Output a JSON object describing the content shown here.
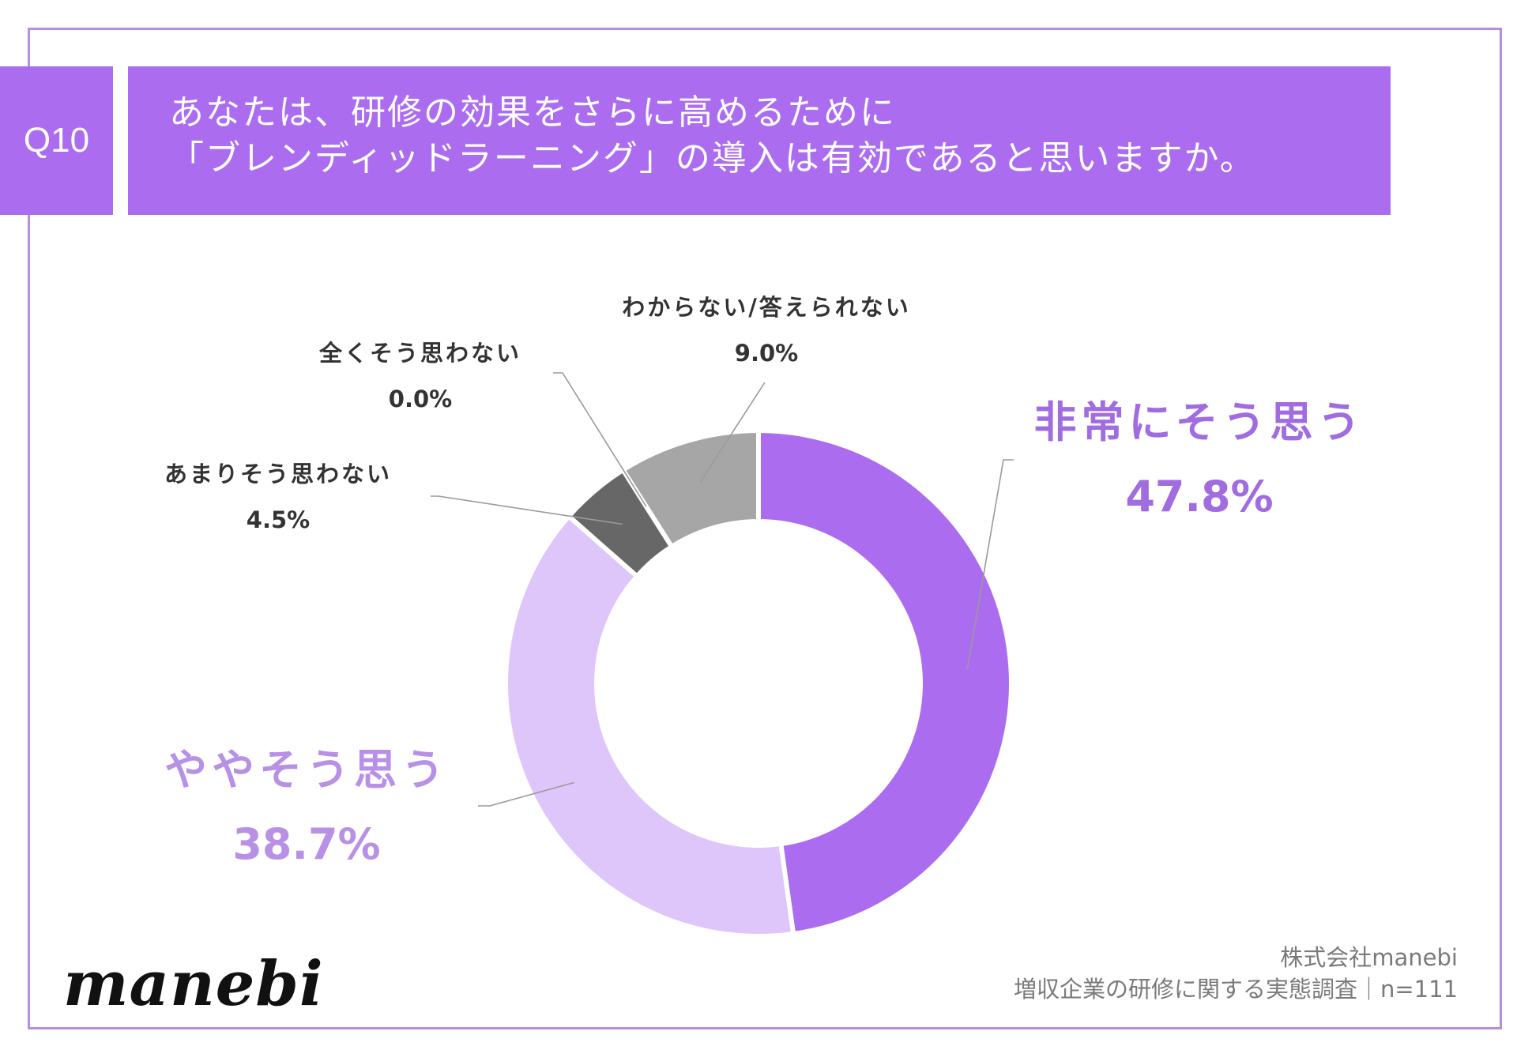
{
  "header": {
    "question_no": "Q10",
    "title_line1": "あなたは、研修の効果をさらに高めるために",
    "title_line2": "「ブレンディッドラーニング」の導入は有効であると思いますか。"
  },
  "chart_data": {
    "type": "pie",
    "donut": true,
    "title": "あなたは、研修の効果をさらに高めるために「ブレンディッドラーニング」の導入は有効であると思いますか。",
    "slices": [
      {
        "key": "very",
        "label": "非常にそう思う",
        "value": 47.8,
        "value_label": "47.8%",
        "color": "#ac6cf0"
      },
      {
        "key": "somewhat",
        "label": "ややそう思う",
        "value": 38.7,
        "value_label": "38.7%",
        "color": "#dfc6fa"
      },
      {
        "key": "not_much",
        "label": "あまりそう思わない",
        "value": 4.5,
        "value_label": "4.5%",
        "color": "#676767"
      },
      {
        "key": "not_at_all",
        "label": "全くそう思わない",
        "value": 0.0,
        "value_label": "0.0%",
        "color": "#333333"
      },
      {
        "key": "unknown",
        "label": "わからない/答えられない",
        "value": 9.0,
        "value_label": "9.0%",
        "color": "#a6a6a6"
      }
    ]
  },
  "colors": {
    "accent": "#ac6cf0",
    "accent_light": "#dfc6fa",
    "accent_text": "#a06ce0",
    "accent_text_light": "#b890e6",
    "frame": "#b48ee0",
    "label_text": "#333333",
    "leader_line": "#9a9a9a"
  },
  "footer": {
    "logo": "manebi",
    "source_line1": "株式会社manebi",
    "source_line2": "増収企業の研修に関する実態調査｜n=111"
  }
}
